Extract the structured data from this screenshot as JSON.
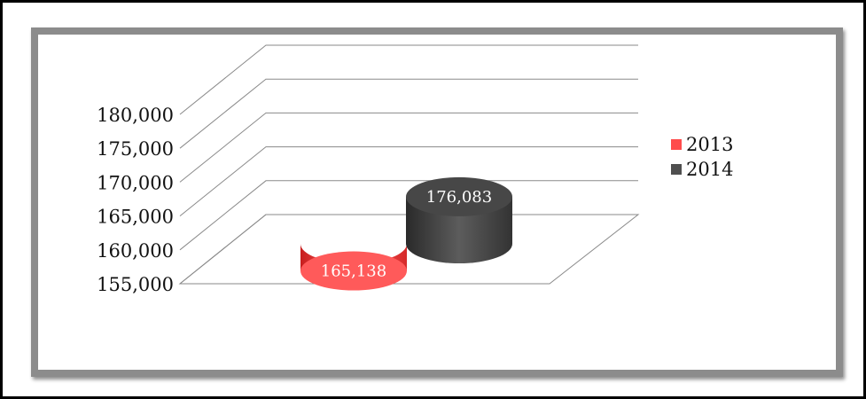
{
  "chart_data": {
    "type": "bar",
    "style": "3d-cylinder",
    "categories": [
      "2013",
      "2014"
    ],
    "values": [
      165138,
      176083
    ],
    "value_labels": [
      "165,138",
      "176,083"
    ],
    "title": "",
    "xlabel": "",
    "ylabel": "",
    "ylim": [
      155000,
      180000
    ],
    "yticks": [
      155000,
      160000,
      165000,
      170000,
      175000,
      180000
    ],
    "ytick_labels": [
      "155,000",
      "160,000",
      "165,000",
      "170,000",
      "175,000",
      "180,000"
    ],
    "grid": true,
    "legend": {
      "position": "right",
      "entries": [
        {
          "label": "2013",
          "color": "#ff4b4b"
        },
        {
          "label": "2014",
          "color": "#4f4f4f"
        }
      ]
    },
    "colors": [
      "#ff4b4b",
      "#4f4f4f"
    ]
  }
}
